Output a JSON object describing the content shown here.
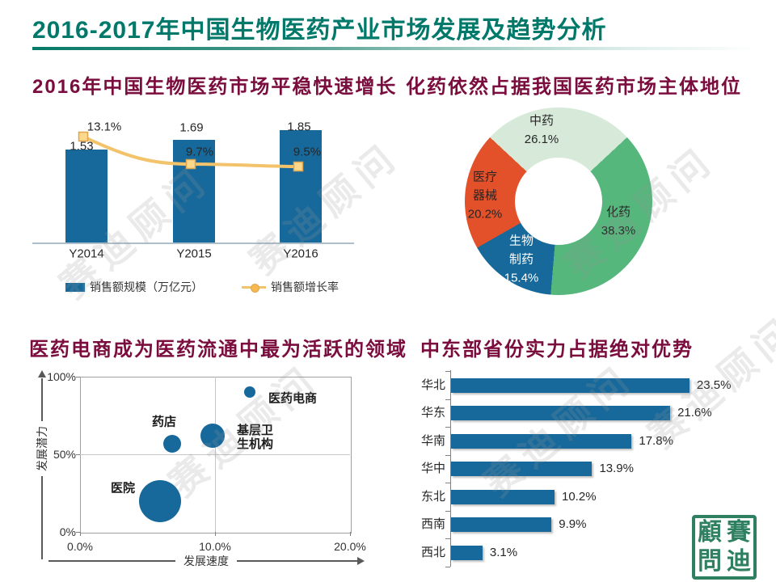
{
  "page": {
    "title": "2016-2017年中国生物医药产业市场发展及趋势分析",
    "title_color": "#00796B",
    "section_title_color": "#7A0D3D",
    "watermark": "赛迪顾问",
    "seal": {
      "chars": [
        "顧",
        "賽",
        "問",
        "迪"
      ],
      "color": "#2E8060"
    }
  },
  "chart_data": [
    {
      "id": "market-growth",
      "type": "bar",
      "combo": "bar+line",
      "title": "2016年中国生物医药市场平稳快速增长",
      "categories": [
        "Y2014",
        "Y2015",
        "Y2016"
      ],
      "series": [
        {
          "name": "销售额规模（万亿元）",
          "type": "bar",
          "values": [
            1.53,
            1.69,
            1.85
          ],
          "labels": [
            "1.53",
            "1.69",
            "1.85"
          ],
          "color": "#17699B"
        },
        {
          "name": "销售额增长率",
          "type": "line",
          "values": [
            13.1,
            9.7,
            9.5
          ],
          "labels": [
            "13.1%",
            "9.7%",
            "9.5%"
          ],
          "color": "#F2C36B",
          "marker_fill": "#FBD88C",
          "marker_edge": "#DFA64F"
        }
      ]
    },
    {
      "id": "market-structure",
      "type": "pie",
      "donut": true,
      "title": "化药依然占据我国医药市场主体地位",
      "start_angle_deg": 313,
      "slices": [
        {
          "label": "中药",
          "pct": 26.1,
          "display": "26.1%",
          "color": "#D7EAD9",
          "label_color": "#262626"
        },
        {
          "label": "化药",
          "pct": 38.3,
          "display": "38.3%",
          "color": "#55B77C",
          "label_color": "#262626"
        },
        {
          "label": "生物制药",
          "pct": 15.4,
          "display": "15.4%",
          "color": "#17699B",
          "label_color": "#FFFFFF",
          "label_lines": [
            "生物",
            "制药",
            "15.4%"
          ]
        },
        {
          "label": "医疗器械",
          "pct": 20.2,
          "display": "20.2%",
          "color": "#E2512A",
          "label_color": "#262626",
          "label_lines": [
            "医疗",
            "器械",
            "20.2%"
          ]
        }
      ]
    },
    {
      "id": "circulation-bubble",
      "type": "scatter",
      "title": "医药电商成为医药流通中最为活跃的领域",
      "xlabel": "发展速度",
      "ylabel": "发展潜力",
      "x_ticks": [
        "0.0%",
        "10.0%",
        "20.0%"
      ],
      "y_ticks": [
        "0%",
        "50%",
        "100%"
      ],
      "x_range": [
        0,
        20
      ],
      "y_range": [
        0,
        100
      ],
      "bubble_color": "#17699B",
      "points": [
        {
          "label": "医院",
          "x": 5.9,
          "y": 20,
          "r": 26
        },
        {
          "label": "药店",
          "x": 6.8,
          "y": 57,
          "r": 11
        },
        {
          "label": "基层卫生机构",
          "x": 9.8,
          "y": 62,
          "r": 15,
          "label_lines": [
            "基层卫",
            "生机构"
          ]
        },
        {
          "label": "医药电商",
          "x": 12.6,
          "y": 90,
          "r": 7
        }
      ]
    },
    {
      "id": "region-strength",
      "type": "bar",
      "orientation": "horizontal",
      "title": "中东部省份实力占据绝对优势",
      "categories": [
        "华北",
        "华东",
        "华南",
        "华中",
        "东北",
        "西南",
        "西北"
      ],
      "values": [
        23.5,
        21.6,
        17.8,
        13.9,
        10.2,
        9.9,
        3.1
      ],
      "labels": [
        "23.5%",
        "21.6%",
        "17.8%",
        "13.9%",
        "10.2%",
        "9.9%",
        "3.1%"
      ],
      "color": "#17699B",
      "xlim": [
        0,
        25
      ]
    }
  ]
}
